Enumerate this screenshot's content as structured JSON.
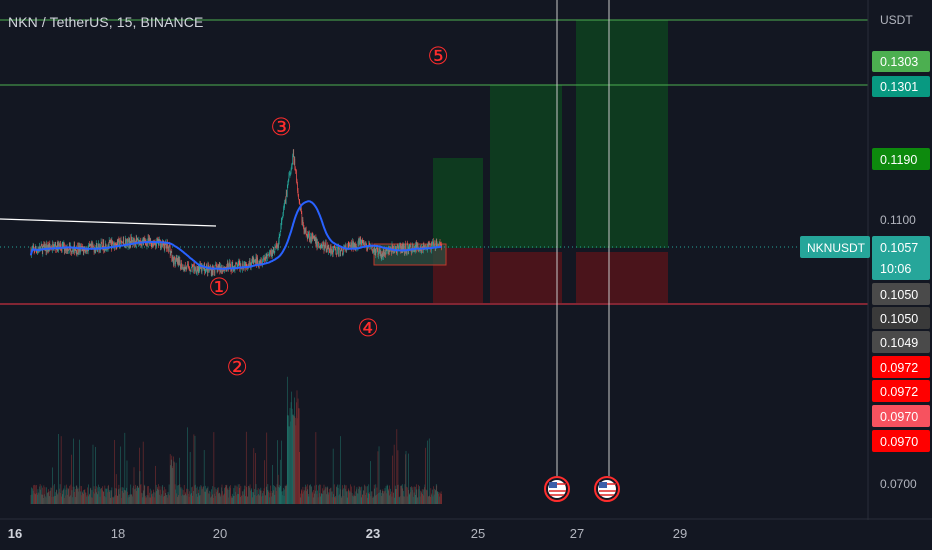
{
  "symbol_title": "NKN / TetherUS, 15, BINANCE",
  "axis_unit": "USDT",
  "colors": {
    "background": "#131722",
    "candle_up": "#26a69a",
    "candle_down": "#ef5350",
    "moving_average": "#2962ff",
    "level_green": "#4caf50",
    "level_red": "#f23645",
    "profit_zone": "#0e3a1f",
    "loss_zone": "#4a141b",
    "annotation": "#ff2d2d"
  },
  "price_axis": {
    "ticks": [
      "0.1100",
      "0.0700"
    ]
  },
  "price_tags": [
    {
      "text": "0.1303",
      "bg": "#4caf50",
      "fg": "#ffffff"
    },
    {
      "text": "0.1301",
      "bg": "#089981",
      "fg": "#ffffff"
    },
    {
      "text": "0.1190",
      "bg": "#0d8a0d",
      "fg": "#ffffff"
    },
    {
      "text": "NKNUSDT",
      "bg": "#26a69a",
      "fg": "#ffffff"
    },
    {
      "text": "0.1057",
      "bg": "#26a69a",
      "fg": "#ffffff"
    },
    {
      "text": "10:06",
      "bg": "#26a69a",
      "fg": "#ffffff"
    },
    {
      "text": "0.1050",
      "bg": "#4a4a4a",
      "fg": "#ffffff"
    },
    {
      "text": "0.1050",
      "bg": "#3a3a3a",
      "fg": "#ffffff"
    },
    {
      "text": "0.1049",
      "bg": "#4a4a4a",
      "fg": "#ffffff"
    },
    {
      "text": "0.0972",
      "bg": "#ff0000",
      "fg": "#ffffff"
    },
    {
      "text": "0.0972",
      "bg": "#ff0000",
      "fg": "#ffffff"
    },
    {
      "text": "0.0970",
      "bg": "#f7525f",
      "fg": "#ffffff"
    },
    {
      "text": "0.0970",
      "bg": "#ff0000",
      "fg": "#ffffff"
    }
  ],
  "annotations": [
    "①",
    "②",
    "③",
    "④",
    "⑤"
  ],
  "chart_data": {
    "type": "line",
    "title": "NKN / TetherUS, 15, BINANCE",
    "xlabel": "",
    "ylabel": "USDT",
    "x_ticks": [
      "16",
      "18",
      "20",
      "23",
      "25",
      "27",
      "29"
    ],
    "series": [
      {
        "values_by_day": [
          {
            "day": 16.0,
            "price": 0.1054
          },
          {
            "day": 16.5,
            "price": 0.106
          },
          {
            "day": 17.0,
            "price": 0.1055
          },
          {
            "day": 17.5,
            "price": 0.1062
          },
          {
            "day": 18.0,
            "price": 0.1068
          },
          {
            "day": 18.5,
            "price": 0.1065
          },
          {
            "day": 18.7,
            "price": 0.1058
          },
          {
            "day": 18.75,
            "price": 0.104
          },
          {
            "day": 19.0,
            "price": 0.1028
          },
          {
            "day": 19.5,
            "price": 0.1025
          },
          {
            "day": 20.0,
            "price": 0.103
          },
          {
            "day": 20.5,
            "price": 0.104
          },
          {
            "day": 20.8,
            "price": 0.106
          },
          {
            "day": 21.1,
            "price": 0.12
          },
          {
            "day": 21.3,
            "price": 0.1085
          },
          {
            "day": 21.6,
            "price": 0.1062
          },
          {
            "day": 22.0,
            "price": 0.1052
          },
          {
            "day": 22.4,
            "price": 0.1066
          },
          {
            "day": 22.8,
            "price": 0.1048
          },
          {
            "day": 23.0,
            "price": 0.1055
          },
          {
            "day": 23.5,
            "price": 0.1058
          },
          {
            "day": 24.0,
            "price": 0.1062
          }
        ]
      }
    ],
    "price_levels": [
      0.1303,
      0.1301,
      0.119,
      0.1057,
      0.105,
      0.1049,
      0.0972,
      0.097
    ],
    "grid": false
  }
}
